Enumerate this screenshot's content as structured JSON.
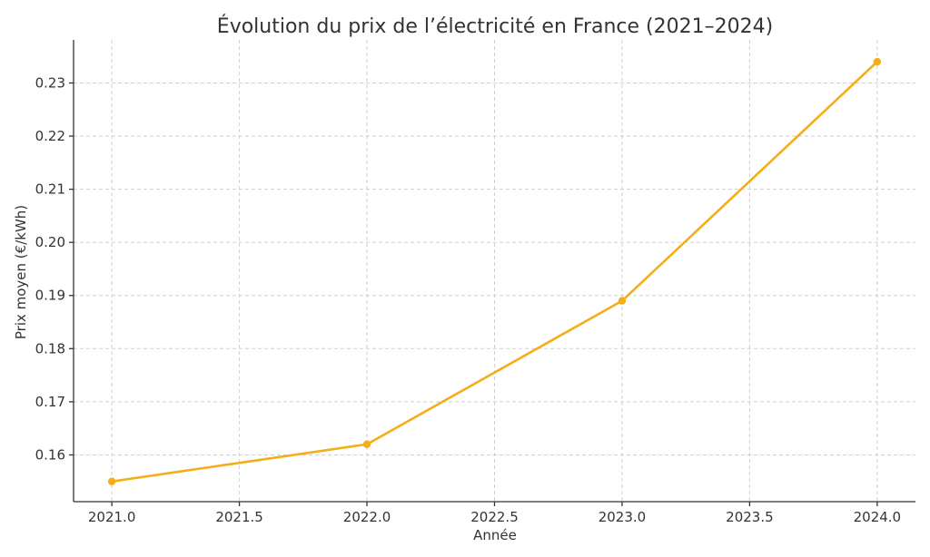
{
  "chart_data": {
    "type": "line",
    "title": "Évolution du prix de l’électricité en France (2021–2024)",
    "xlabel": "Année",
    "ylabel": "Prix moyen (€/kWh)",
    "xlim": [
      2020.85,
      2024.15
    ],
    "ylim": [
      0.1512,
      0.2381
    ],
    "x_ticks": [
      2021.0,
      2021.5,
      2022.0,
      2022.5,
      2023.0,
      2023.5,
      2024.0
    ],
    "x_tick_labels": [
      "2021.0",
      "2021.5",
      "2022.0",
      "2022.5",
      "2023.0",
      "2023.5",
      "2024.0"
    ],
    "y_ticks": [
      0.16,
      0.17,
      0.18,
      0.19,
      0.2,
      0.21,
      0.22,
      0.23
    ],
    "y_tick_labels": [
      "0.16",
      "0.17",
      "0.18",
      "0.19",
      "0.20",
      "0.21",
      "0.22",
      "0.23"
    ],
    "grid": true,
    "series": [
      {
        "color": "#f5ad18",
        "marker": "circle",
        "x": [
          2021,
          2022,
          2023,
          2024
        ],
        "values": [
          0.155,
          0.162,
          0.189,
          0.234
        ]
      }
    ]
  }
}
